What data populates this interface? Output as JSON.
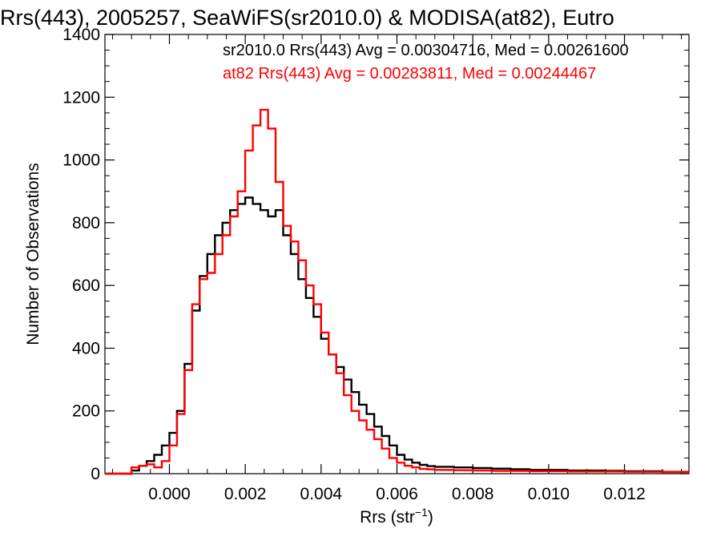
{
  "chart_data": {
    "type": "line",
    "title": "Rrs(443), 2005257, SeaWiFS(sr2010.0) & MODISA(at82), Eutro",
    "xlabel_main": "Rrs (str",
    "xlabel_sup": "−1",
    "xlabel_close": ")",
    "ylabel": "Number of Observations",
    "xlim": [
      -0.0017,
      0.0137
    ],
    "ylim": [
      0,
      1400
    ],
    "xticks": [
      "0.000",
      "0.002",
      "0.004",
      "0.006",
      "0.008",
      "0.010",
      "0.012"
    ],
    "xtick_values": [
      0.0,
      0.002,
      0.004,
      0.006,
      0.008,
      0.01,
      0.012
    ],
    "yticks": [
      "0",
      "200",
      "400",
      "600",
      "800",
      "1000",
      "1200",
      "1400"
    ],
    "ytick_values": [
      0,
      200,
      400,
      600,
      800,
      1000,
      1200,
      1400
    ],
    "grid": false,
    "legend_placement": "top-right",
    "colors": {
      "sr2010": "#000000",
      "at82": "#ff0000"
    },
    "series": [
      {
        "label": "sr2010.0 Rrs(443) Avg = 0.00304716, Med = 0.00261600",
        "color": "#000000",
        "step": true,
        "x": [
          -0.0017,
          -0.0012,
          -0.001,
          -0.0008,
          -0.0006,
          -0.0004,
          -0.0002,
          0.0,
          0.0002,
          0.0004,
          0.0006,
          0.0008,
          0.001,
          0.0012,
          0.0014,
          0.0016,
          0.0018,
          0.002,
          0.0022,
          0.0024,
          0.0026,
          0.0028,
          0.003,
          0.0032,
          0.0034,
          0.0036,
          0.0038,
          0.004,
          0.0042,
          0.0044,
          0.0046,
          0.0048,
          0.005,
          0.0052,
          0.0054,
          0.0056,
          0.0058,
          0.006,
          0.0062,
          0.0064,
          0.0066,
          0.0068,
          0.007,
          0.0075,
          0.008,
          0.0085,
          0.009,
          0.0095,
          0.01,
          0.0105,
          0.011,
          0.0115,
          0.012,
          0.0125,
          0.013,
          0.0137
        ],
        "y": [
          0,
          0,
          10,
          25,
          40,
          60,
          90,
          130,
          200,
          350,
          520,
          630,
          700,
          760,
          800,
          840,
          860,
          880,
          860,
          840,
          820,
          840,
          760,
          700,
          620,
          560,
          500,
          430,
          380,
          340,
          300,
          260,
          220,
          190,
          150,
          120,
          90,
          60,
          45,
          35,
          28,
          24,
          22,
          20,
          18,
          16,
          14,
          12,
          12,
          10,
          10,
          9,
          8,
          8,
          6,
          6
        ]
      },
      {
        "label": "at82 Rrs(443) Avg = 0.00283811, Med = 0.00244467",
        "color": "#ff0000",
        "step": true,
        "x": [
          -0.0017,
          -0.0012,
          -0.001,
          -0.0008,
          -0.0006,
          -0.0004,
          -0.0002,
          0.0,
          0.0002,
          0.0004,
          0.0006,
          0.0008,
          0.001,
          0.0012,
          0.0014,
          0.0016,
          0.0018,
          0.002,
          0.0022,
          0.0024,
          0.0026,
          0.0028,
          0.003,
          0.0032,
          0.0034,
          0.0036,
          0.0038,
          0.004,
          0.0042,
          0.0044,
          0.0046,
          0.0048,
          0.005,
          0.0052,
          0.0054,
          0.0056,
          0.0058,
          0.006,
          0.0062,
          0.0064,
          0.0066,
          0.0068,
          0.007,
          0.0075,
          0.008,
          0.0085,
          0.009,
          0.0095,
          0.01,
          0.0105,
          0.011,
          0.0115,
          0.012,
          0.0125,
          0.013,
          0.0137
        ],
        "y": [
          0,
          0,
          20,
          25,
          30,
          20,
          40,
          90,
          190,
          330,
          540,
          620,
          640,
          700,
          760,
          820,
          900,
          1030,
          1110,
          1160,
          1100,
          930,
          790,
          740,
          680,
          600,
          540,
          450,
          380,
          320,
          250,
          200,
          170,
          140,
          110,
          80,
          50,
          35,
          25,
          20,
          15,
          14,
          12,
          11,
          10,
          9,
          9,
          8,
          8,
          7,
          7,
          7,
          6,
          6,
          5,
          5
        ]
      }
    ]
  }
}
